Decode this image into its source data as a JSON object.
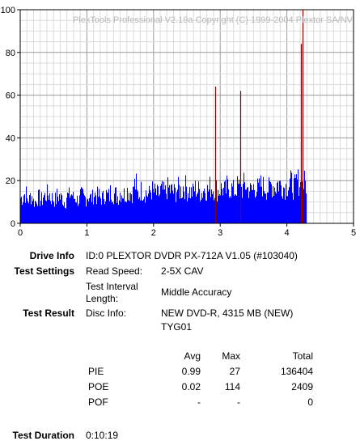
{
  "watermark": "PlexTools Professional V2.19a Copyright (C) 1999-2004 Plextor SA/NV",
  "chart_data": {
    "type": "bar",
    "xlim": [
      0,
      5
    ],
    "ylim": [
      0,
      100
    ],
    "x_ticks": [
      "0",
      "1",
      "2",
      "3",
      "4",
      "5"
    ],
    "y_ticks": [
      "0",
      "20",
      "40",
      "60",
      "80",
      "100"
    ],
    "grid": true,
    "series": [
      {
        "color": "#0000ff",
        "x": [
          0.0,
          0.05,
          0.1,
          0.15,
          0.2,
          0.25,
          0.3,
          0.35,
          0.4,
          0.45,
          0.5,
          0.55,
          0.6,
          0.65,
          0.7,
          0.75,
          0.8,
          0.85,
          0.9,
          0.95,
          1.0,
          1.05,
          1.1,
          1.15,
          1.2,
          1.25,
          1.3,
          1.35,
          1.4,
          1.45,
          1.5,
          1.55,
          1.6,
          1.65,
          1.7,
          1.75,
          1.8,
          1.85,
          1.9,
          1.95,
          2.0,
          2.05,
          2.1,
          2.15,
          2.2,
          2.25,
          2.3,
          2.35,
          2.4,
          2.45,
          2.5,
          2.55,
          2.6,
          2.65,
          2.7,
          2.75,
          2.8,
          2.85,
          2.9,
          2.95,
          3.0,
          3.05,
          3.1,
          3.15,
          3.2,
          3.25,
          3.3,
          3.35,
          3.4,
          3.45,
          3.5,
          3.55,
          3.6,
          3.65,
          3.7,
          3.75,
          3.8,
          3.85,
          3.9,
          3.95,
          4.0,
          4.05,
          4.1,
          4.15,
          4.2,
          4.25
        ],
        "values": [
          14,
          16,
          13,
          15,
          12,
          14,
          13,
          15,
          16,
          14,
          13,
          15,
          14,
          12,
          15,
          16,
          14,
          13,
          15,
          14,
          15,
          14,
          16,
          15,
          14,
          16,
          15,
          17,
          16,
          15,
          17,
          16,
          18,
          17,
          21,
          16,
          18,
          17,
          16,
          18,
          17,
          16,
          18,
          17,
          19,
          18,
          17,
          19,
          18,
          20,
          18,
          17,
          19,
          18,
          17,
          19,
          18,
          20,
          19,
          18,
          19,
          18,
          20,
          19,
          18,
          20,
          19,
          21,
          19,
          18,
          20,
          19,
          21,
          20,
          19,
          21,
          20,
          22,
          21,
          20,
          21,
          22,
          20,
          23,
          21,
          22
        ]
      },
      {
        "color": "#8b0000",
        "x": [
          2.92,
          3.3,
          4.21,
          4.23
        ],
        "values": [
          64,
          62,
          84,
          100
        ]
      }
    ]
  },
  "info": {
    "drive_label": "Drive Info",
    "drive_value": "ID:0 PLEXTOR DVDR PX-712A V1.05 (#103040)",
    "settings_label": "Test Settings",
    "read_speed_key": "Read Speed:",
    "read_speed_value": "2-5X CAV",
    "interval_key": "Test Interval Length:",
    "interval_value": "Middle Accuracy",
    "result_label": "Test Result",
    "disc_key": "Disc Info:",
    "disc_value_1": "NEW DVD-R, 4315 MB (NEW)",
    "disc_value_2": "TYG01"
  },
  "stats": {
    "headers": [
      "Avg",
      "Max",
      "Total"
    ],
    "rows": [
      {
        "name": "PIE",
        "avg": "0.99",
        "max": "27",
        "total": "136404"
      },
      {
        "name": "POE",
        "avg": "0.02",
        "max": "114",
        "total": "2409"
      },
      {
        "name": "POF",
        "avg": "-",
        "max": "-",
        "total": "0"
      }
    ]
  },
  "duration": {
    "label": "Test Duration",
    "value": "0:10:19"
  }
}
